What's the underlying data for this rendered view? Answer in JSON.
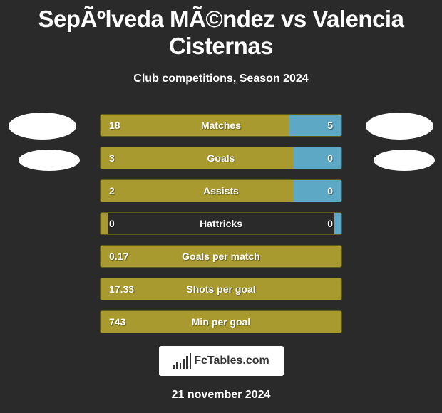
{
  "title": "SepÃºlveda MÃ©ndez vs Valencia Cisternas",
  "subtitle": "Club competitions, Season 2024",
  "colors": {
    "background": "#2a2a2a",
    "left_bar": "#a89a2e",
    "right_bar": "#5da8c4",
    "text": "#ffffff",
    "badge_bg": "#ffffff"
  },
  "stats": [
    {
      "label": "Matches",
      "left_value": "18",
      "right_value": "5",
      "left_pct": 78,
      "right_pct": 22
    },
    {
      "label": "Goals",
      "left_value": "3",
      "right_value": "0",
      "left_pct": 80,
      "right_pct": 20
    },
    {
      "label": "Assists",
      "left_value": "2",
      "right_value": "0",
      "left_pct": 80,
      "right_pct": 20
    },
    {
      "label": "Hattricks",
      "left_value": "0",
      "right_value": "0",
      "left_pct": 3,
      "right_pct": 3
    },
    {
      "label": "Goals per match",
      "left_value": "0.17",
      "right_value": "",
      "left_pct": 100,
      "right_pct": 0
    },
    {
      "label": "Shots per goal",
      "left_value": "17.33",
      "right_value": "",
      "left_pct": 100,
      "right_pct": 0
    },
    {
      "label": "Min per goal",
      "left_value": "743",
      "right_value": "",
      "left_pct": 100,
      "right_pct": 0
    }
  ],
  "footer": {
    "brand": "FcTables.com",
    "date": "21 november 2024"
  }
}
